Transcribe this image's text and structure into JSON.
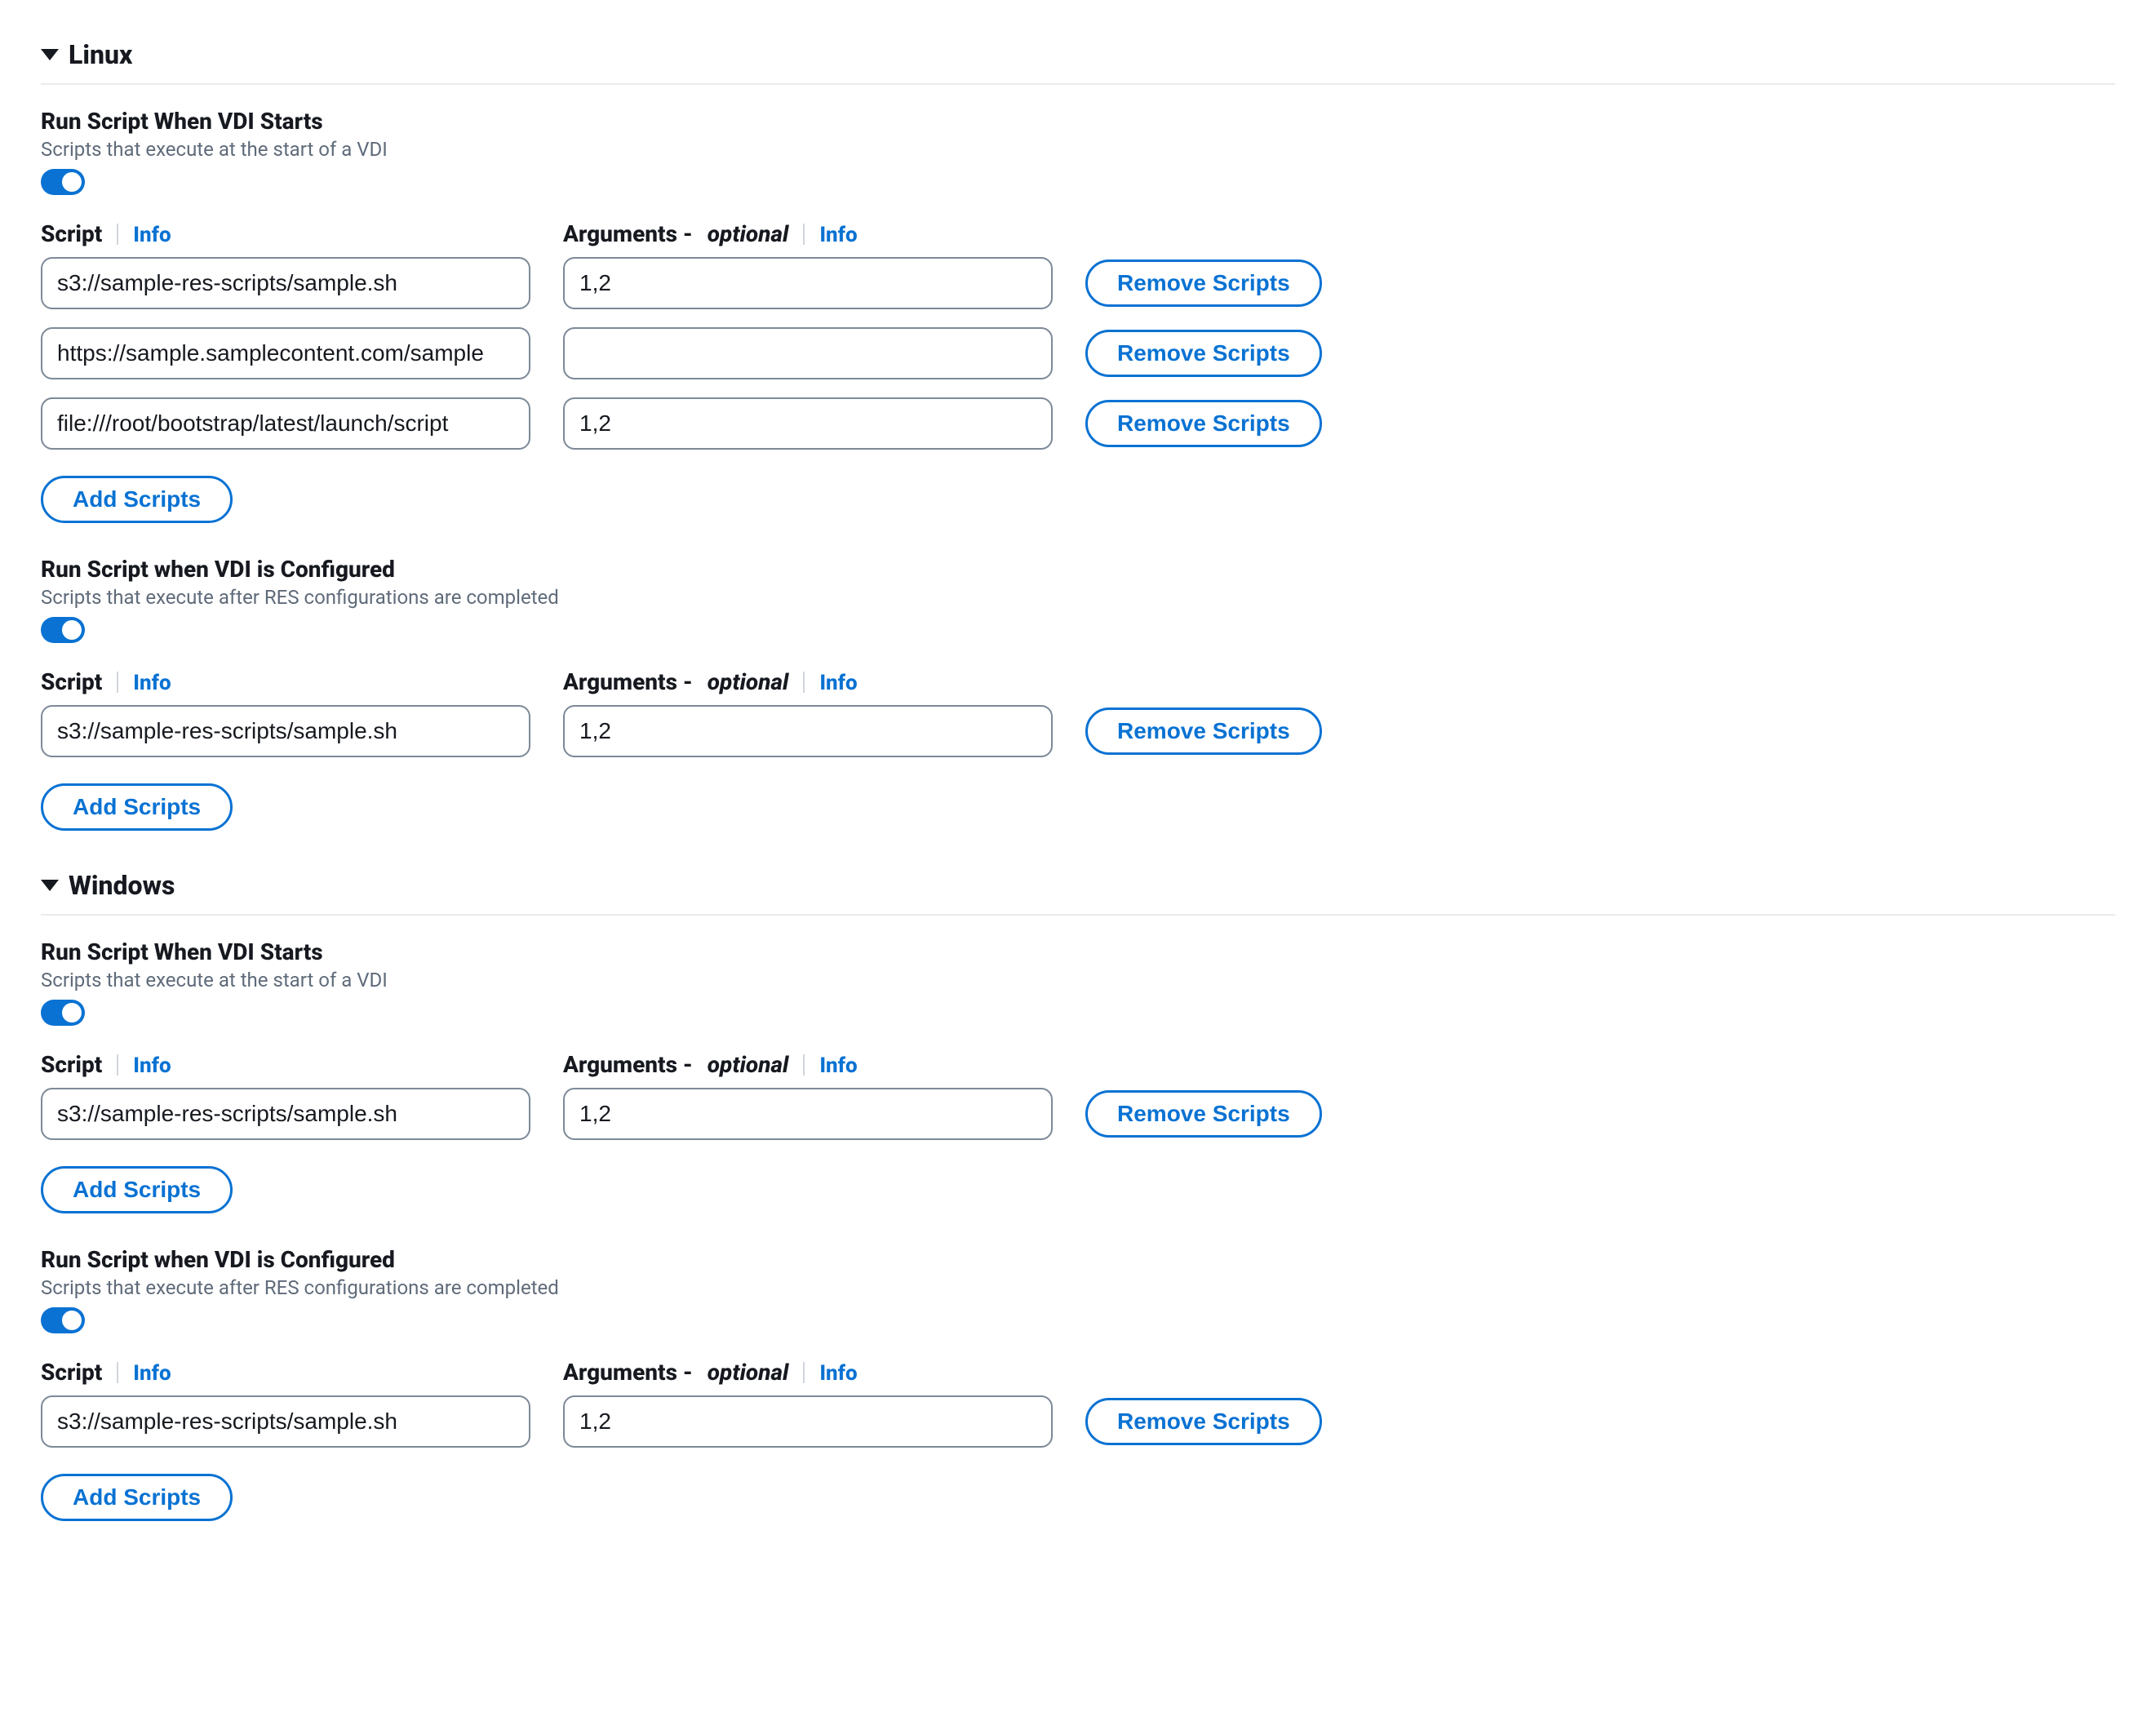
{
  "colors": {
    "brand": "#0972d3",
    "text": "#16191f",
    "muted": "#5f6b7a",
    "divider": "#e9ebed",
    "input_border": "#7d8998"
  },
  "labels": {
    "script": "Script",
    "arguments": "Arguments -",
    "optional": "optional",
    "info": "Info",
    "remove_scripts": "Remove Scripts",
    "add_scripts": "Add Scripts"
  },
  "sections": [
    {
      "title": "Linux",
      "subsections": [
        {
          "title": "Run Script When VDI Starts",
          "desc": "Scripts that execute at the start of a VDI",
          "toggle": true,
          "rows": [
            {
              "script": "s3://sample-res-scripts/sample.sh",
              "args": "1,2"
            },
            {
              "script": "https://sample.samplecontent.com/sample",
              "args": ""
            },
            {
              "script": "file:///root/bootstrap/latest/launch/script",
              "args": "1,2"
            }
          ]
        },
        {
          "title": "Run Script when VDI is Configured",
          "desc": "Scripts that execute after RES configurations are completed",
          "toggle": true,
          "rows": [
            {
              "script": "s3://sample-res-scripts/sample.sh",
              "args": "1,2"
            }
          ]
        }
      ]
    },
    {
      "title": "Windows",
      "subsections": [
        {
          "title": "Run Script When VDI Starts",
          "desc": "Scripts that execute at the start of a VDI",
          "toggle": true,
          "rows": [
            {
              "script": "s3://sample-res-scripts/sample.sh",
              "args": "1,2"
            }
          ]
        },
        {
          "title": "Run Script when VDI is Configured",
          "desc": "Scripts that execute after RES configurations are completed",
          "toggle": true,
          "rows": [
            {
              "script": "s3://sample-res-scripts/sample.sh",
              "args": "1,2"
            }
          ]
        }
      ]
    }
  ]
}
